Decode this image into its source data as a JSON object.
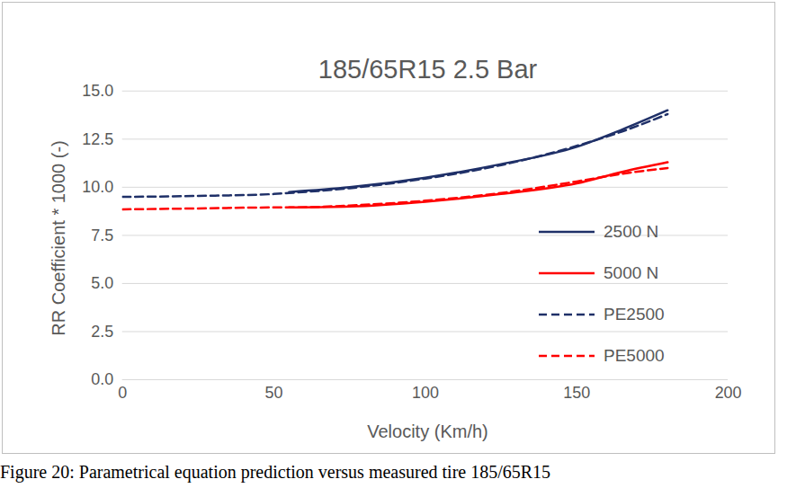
{
  "chart_data": {
    "type": "line",
    "title": "185/65R15 2.5 Bar",
    "caption": "Figure 20:  Parametrical equation prediction versus measured tire 185/65R15",
    "x_label": "Velocity (Km/h)",
    "y_label": "RR Coefficient * 1000 (-)",
    "x": [
      0,
      25,
      50,
      55,
      75,
      100,
      125,
      150,
      165,
      180
    ],
    "series": [
      {
        "name": "2500 N",
        "color": "#1f3068",
        "line_style": "solid",
        "values": [
          null,
          null,
          null,
          9.75,
          10.0,
          10.5,
          11.2,
          12.1,
          13.0,
          14.0
        ]
      },
      {
        "name": "5000 N",
        "color": "#ff0000",
        "line_style": "solid",
        "values": [
          null,
          null,
          null,
          8.95,
          9.0,
          9.25,
          9.65,
          10.2,
          10.8,
          11.3
        ]
      },
      {
        "name": "PE2500",
        "color": "#1f3068",
        "line_style": "dashed",
        "values": [
          9.5,
          9.55,
          9.65,
          9.7,
          9.95,
          10.45,
          11.15,
          12.15,
          12.9,
          13.8
        ]
      },
      {
        "name": "PE5000",
        "color": "#ff0000",
        "line_style": "dashed",
        "values": [
          8.85,
          8.9,
          8.95,
          8.95,
          9.05,
          9.3,
          9.7,
          10.3,
          10.7,
          11.0
        ]
      }
    ],
    "xlim": [
      0,
      200
    ],
    "xticks": [
      0,
      50,
      100,
      150,
      200
    ],
    "ylim": [
      0,
      15
    ],
    "yticks": [
      {
        "value": 0,
        "label": "0.0"
      },
      2.5,
      {
        "value": 5,
        "label": "5.0"
      },
      7.5,
      {
        "value": 10,
        "label": "10.0"
      },
      12.5,
      {
        "value": 15,
        "label": "15.0"
      }
    ],
    "grid": true,
    "legend": "right"
  }
}
